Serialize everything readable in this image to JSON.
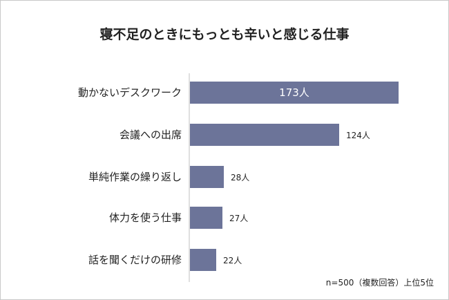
{
  "chart_data": {
    "type": "bar",
    "orientation": "horizontal",
    "title": "寝不足のときにもっとも辛いと感じる仕事",
    "categories": [
      "動かないデスクワーク",
      "会議への出席",
      "単純作業の繰り返し",
      "体力を使う仕事",
      "話を聞くだけの研修"
    ],
    "values": [
      173,
      124,
      28,
      27,
      22
    ],
    "value_labels": [
      "173人",
      "124人",
      "28人",
      "27人",
      "22人"
    ],
    "note": "n=500（複数回答）上位5位",
    "bar_color": "#6c7499",
    "grid": false,
    "legend": "none"
  }
}
